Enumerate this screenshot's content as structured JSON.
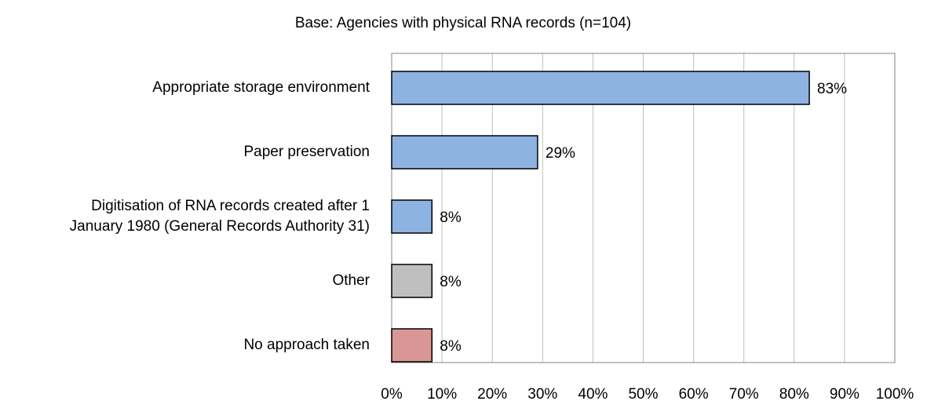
{
  "chart_data": {
    "type": "bar",
    "orientation": "horizontal",
    "title": "Base: Agencies with physical RNA records (n=104)",
    "categories": [
      "Appropriate storage environment",
      "Paper preservation",
      "Digitisation of RNA records created after 1\nJanuary 1980 (General Records Authority 31)",
      "Other",
      "No approach taken"
    ],
    "values": [
      83,
      29,
      8,
      8,
      8
    ],
    "value_labels": [
      "83%",
      "29%",
      "8%",
      "8%",
      "8%"
    ],
    "colors": [
      "#8db3e2",
      "#8db3e2",
      "#8db3e2",
      "#bfbfbf",
      "#d99694"
    ],
    "xlim": [
      0,
      100
    ],
    "xticks": [
      {
        "value": 0,
        "label": "0%"
      },
      {
        "value": 10,
        "label": "10%"
      },
      {
        "value": 20,
        "label": "20%"
      },
      {
        "value": 30,
        "label": "30%"
      },
      {
        "value": 40,
        "label": "40%"
      },
      {
        "value": 50,
        "label": "50%"
      },
      {
        "value": 60,
        "label": "60%"
      },
      {
        "value": 70,
        "label": "70%"
      },
      {
        "value": 80,
        "label": "80%"
      },
      {
        "value": 90,
        "label": "90%"
      },
      {
        "value": 100,
        "label": "100%"
      }
    ],
    "grid": true
  }
}
